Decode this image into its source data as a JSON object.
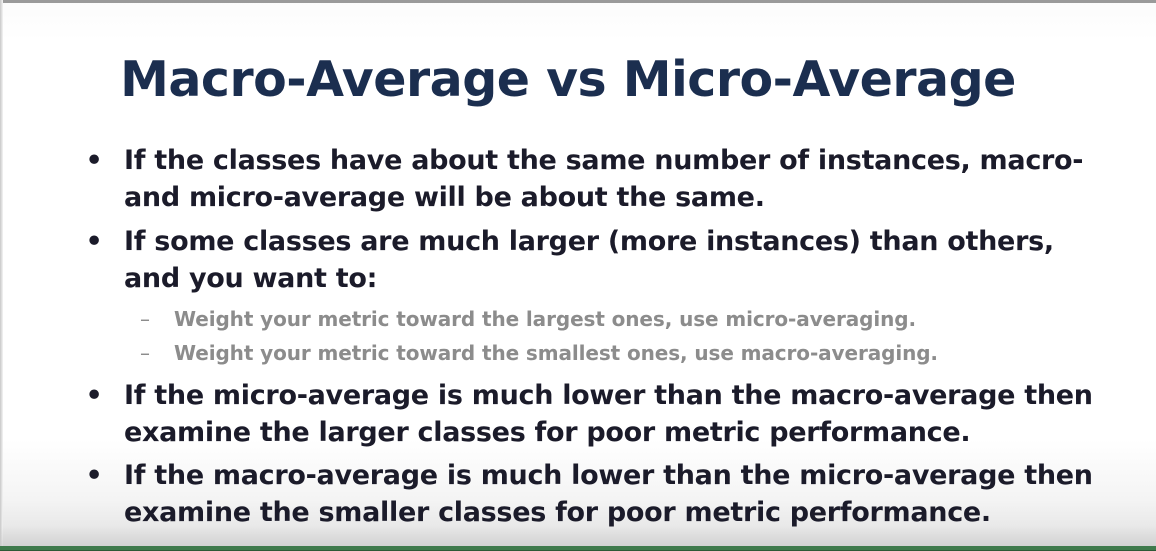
{
  "slide": {
    "title": "Macro-Average vs Micro-Average",
    "bullets": [
      {
        "marker": "•",
        "lines": [
          "If the classes have about the same number of instances, macro-",
          "and micro-average will be about the same."
        ]
      },
      {
        "marker": "•",
        "lines": [
          "If some classes are much larger (more instances) than others,",
          "and you want to:"
        ],
        "subitems": [
          {
            "marker": "–",
            "text": "Weight your metric toward the largest ones, use micro-averaging."
          },
          {
            "marker": "–",
            "text": "Weight your metric toward the smallest ones, use macro-averaging."
          }
        ]
      },
      {
        "marker": "•",
        "lines": [
          "If the micro-average is much lower than the macro-average then",
          "examine the larger classes for poor metric performance."
        ]
      },
      {
        "marker": "•",
        "lines": [
          "If the macro-average is much lower than the micro-average then",
          "examine the smaller classes for poor metric performance."
        ]
      }
    ]
  },
  "colors": {
    "title": "#1b2e4f",
    "body_text": "#1b1b2a",
    "sub_text": "#8c8c8c",
    "bottom_accent": "#3f7a4c"
  }
}
